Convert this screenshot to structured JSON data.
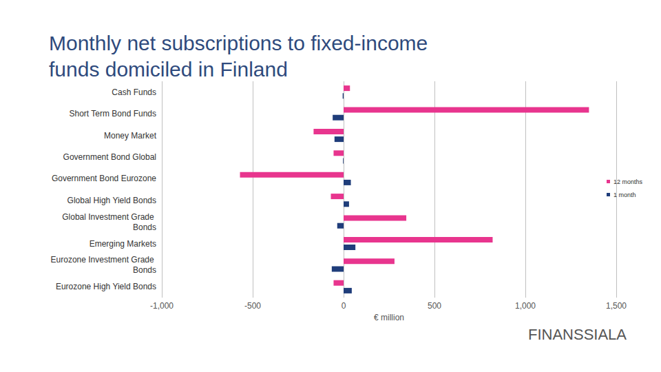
{
  "chart_data": {
    "type": "bar",
    "title": "Monthly net subscriptions to fixed-income funds domiciled in Finland",
    "orientation": "horizontal",
    "categories": [
      "Cash Funds",
      "Short Term Bond Funds",
      "Money Market",
      "Government Bond Global",
      "Government Bond Eurozone",
      "Global High Yield Bonds",
      "Global Investment Grade Bonds",
      "Emerging Markets",
      "Eurozone Investment Grade Bonds",
      "Eurozone High Yield Bonds"
    ],
    "series": [
      {
        "name": "12 months",
        "color": "#e8358e",
        "values": [
          35,
          1350,
          -165,
          -55,
          -570,
          -70,
          345,
          820,
          280,
          -55
        ]
      },
      {
        "name": "1 month",
        "color": "#1f3d7a",
        "values": [
          -5,
          -60,
          -50,
          -3,
          40,
          30,
          -35,
          65,
          -65,
          45
        ]
      }
    ],
    "x_label": "€ million",
    "xlim": [
      -1000,
      1500
    ],
    "xticks": [
      {
        "value": -1000,
        "label": "-1,000"
      },
      -500,
      0,
      500,
      {
        "value": 1000,
        "label": "1,000"
      },
      {
        "value": 1500,
        "label": "1,500"
      }
    ],
    "grid": true,
    "legend": "right",
    "data_labels": false,
    "annotations": [
      "FINANSSIALA"
    ]
  }
}
